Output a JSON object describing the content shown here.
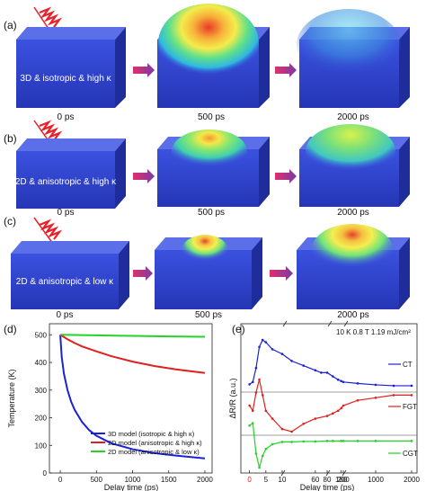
{
  "rows": [
    {
      "panel": "(a)",
      "model_label": "3D & isotropic & high κ",
      "times": [
        "0 ps",
        "500 ps",
        "2000 ps"
      ]
    },
    {
      "panel": "(b)",
      "model_label": "2D & anisotropic & high κ",
      "times": [
        "0 ps",
        "500 ps",
        "2000 ps"
      ]
    },
    {
      "panel": "(c)",
      "model_label": "2D & anisotropic & low κ",
      "times": [
        "0 ps",
        "500 ps",
        "2000 ps"
      ]
    }
  ],
  "colors": {
    "block_front": "#2d41c8",
    "block_top": "#5b6fe8",
    "block_side": "#1f2c9c",
    "laser": "#e8202a",
    "arrow": "#b0306a"
  },
  "chart_data": [
    {
      "panel": "(d)",
      "type": "line",
      "xlabel": "Delay time (ps)",
      "ylabel": "Temperature (K)",
      "xlim": [
        -150,
        2100
      ],
      "ylim": [
        0,
        540
      ],
      "xticks": [
        0,
        500,
        1000,
        1500,
        2000
      ],
      "yticks": [
        0,
        100,
        200,
        300,
        400,
        500
      ],
      "legend_position": "lower-right",
      "series": [
        {
          "name": "3D model (isotropic & high κ)",
          "color": "#1a22d4",
          "x": [
            0,
            20,
            50,
            100,
            150,
            200,
            300,
            400,
            500,
            700,
            1000,
            1300,
            1600,
            2000
          ],
          "y": [
            500,
            420,
            360,
            300,
            258,
            228,
            185,
            155,
            135,
            108,
            86,
            72,
            63,
            53
          ]
        },
        {
          "name": "2D model (anisotropic & high κ)",
          "color": "#e0201c",
          "x": [
            0,
            50,
            100,
            200,
            300,
            500,
            700,
            1000,
            1300,
            1600,
            2000
          ],
          "y": [
            500,
            492,
            484,
            470,
            458,
            440,
            423,
            403,
            387,
            375,
            362
          ]
        },
        {
          "name": "2D model (anisotropic & low κ)",
          "color": "#22d427",
          "x": [
            0,
            500,
            1000,
            1500,
            2000
          ],
          "y": [
            500,
            498,
            496,
            494,
            493
          ]
        }
      ]
    },
    {
      "panel": "(e)",
      "type": "line",
      "title": "10 K 0.8 T 1.19 mJ/cm²",
      "xlabel": "Delay time (ps)",
      "ylabel": "ΔR/R (a.u.)",
      "xtick_labels": [
        "0",
        "5",
        "10",
        "60",
        "80",
        "180",
        "200",
        "1000",
        "2000"
      ],
      "series": [
        {
          "name": "CT",
          "color": "#1a22d4",
          "x": [
            0,
            1,
            2,
            3,
            4,
            5,
            7,
            10,
            20,
            40,
            60,
            70,
            80,
            100,
            150,
            180,
            200,
            500,
            1000,
            1500,
            2000
          ],
          "y": [
            0.05,
            0.1,
            0.4,
            0.85,
            1.0,
            0.95,
            0.8,
            0.7,
            0.55,
            0.45,
            0.35,
            0.3,
            0.3,
            0.22,
            0.15,
            0.12,
            0.1,
            0.07,
            0.04,
            0.02,
            0.02
          ]
        },
        {
          "name": "FGT",
          "color": "#e0201c",
          "x": [
            0,
            1,
            2,
            3,
            4,
            5,
            7,
            10,
            20,
            40,
            60,
            80,
            100,
            150,
            180,
            200,
            500,
            1000,
            1500,
            2000
          ],
          "y": [
            0.5,
            0.4,
            0.75,
            1.0,
            0.7,
            0.4,
            0.25,
            0.05,
            0.0,
            0.15,
            0.25,
            0.3,
            0.35,
            0.4,
            0.45,
            0.5,
            0.6,
            0.65,
            0.7,
            0.7
          ]
        },
        {
          "name": "CGT",
          "color": "#22d427",
          "x": [
            0,
            1,
            2,
            3,
            4,
            5,
            7,
            10,
            20,
            40,
            60,
            80,
            100,
            180,
            200,
            500,
            1000,
            2000
          ],
          "y": [
            0.9,
            0.95,
            0.3,
            0.0,
            0.25,
            0.4,
            0.5,
            0.55,
            0.55,
            0.56,
            0.56,
            0.57,
            0.57,
            0.57,
            0.57,
            0.57,
            0.57,
            0.57
          ]
        }
      ]
    }
  ]
}
